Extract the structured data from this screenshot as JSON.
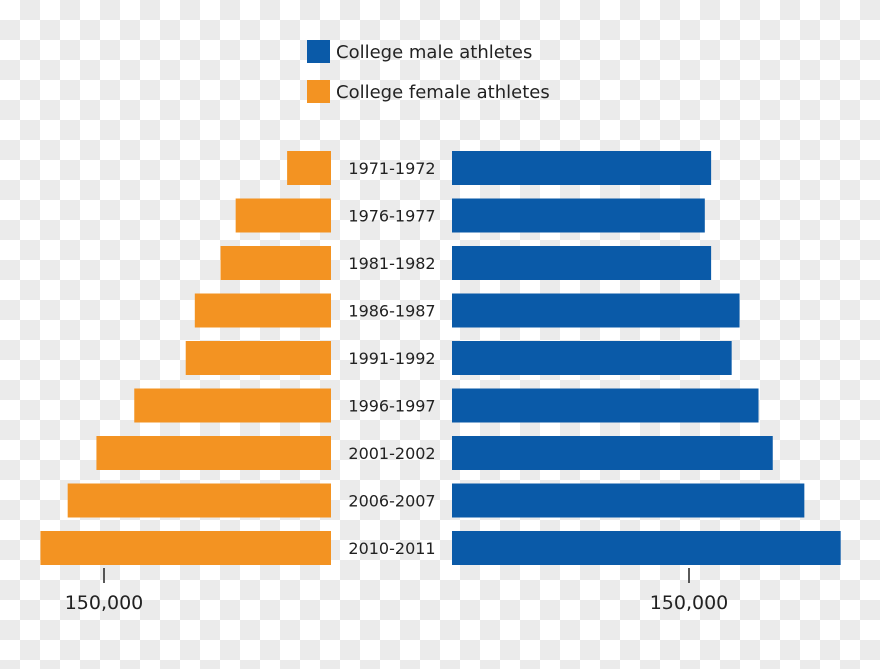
{
  "chart_data": {
    "type": "bar",
    "orientation": "horizontal-butterfly",
    "title": "",
    "categories": [
      "1971-1972",
      "1976-1977",
      "1981-1982",
      "1986-1987",
      "1991-1992",
      "1996-1997",
      "2001-2002",
      "2006-2007",
      "2010-2011"
    ],
    "series": [
      {
        "name": "College male athletes",
        "side": "right",
        "color": "#0a5aa8",
        "values": [
          164000,
          160000,
          164000,
          182000,
          177000,
          194000,
          203000,
          223000,
          246000
        ]
      },
      {
        "name": "College female athletes",
        "side": "left",
        "color": "#f39322",
        "values": [
          29000,
          63000,
          73000,
          90000,
          96000,
          130000,
          155000,
          174000,
          192000
        ]
      }
    ],
    "xticks": [
      {
        "value": 150000,
        "label": "150,000",
        "side": "left"
      },
      {
        "value": 150000,
        "label": "150,000",
        "side": "right"
      }
    ],
    "legend_position": "top-center",
    "grid": false
  }
}
